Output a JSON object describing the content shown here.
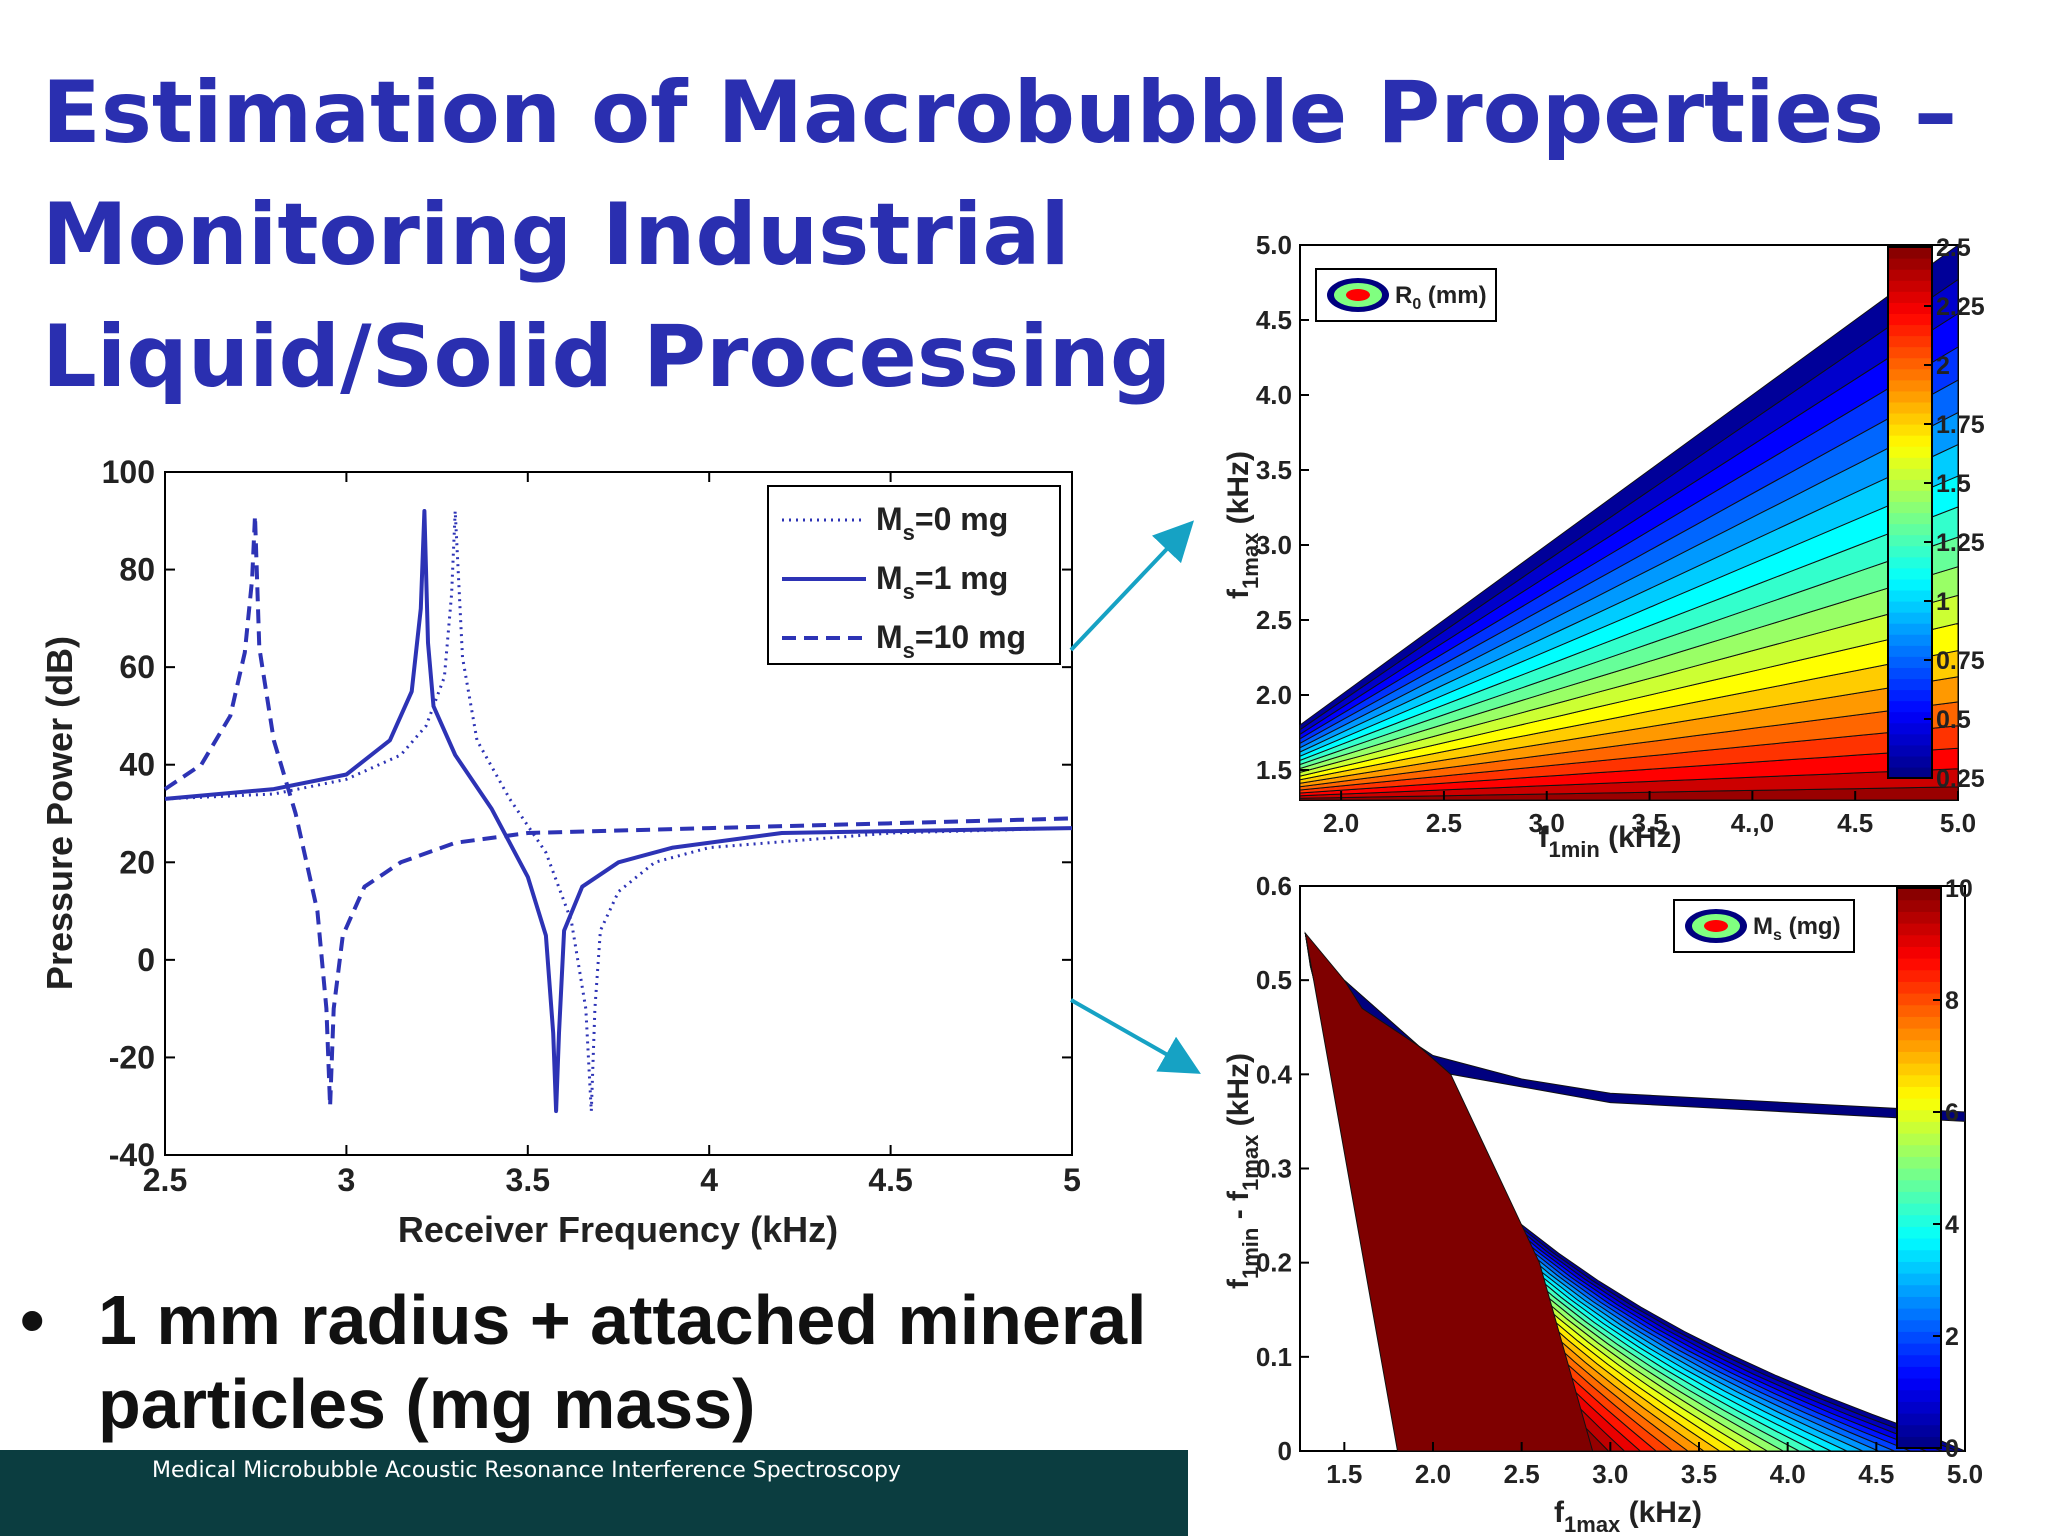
{
  "slide": {
    "title_lines": [
      "Estimation of Macrobubble Properties –",
      "Monitoring Industrial",
      "Liquid/Solid Processing"
    ],
    "bullet_symbol": "•",
    "bullet_text": "1 mm radius + attached mineral particles (mg mass)",
    "footer_text": "Medical Microbubble Acoustic Resonance Interference Spectroscopy"
  },
  "chart_data": [
    {
      "type": "line",
      "xlabel": "Receiver Frequency (kHz)",
      "ylabel": "Pressure Power (dB)",
      "xlim": [
        2.5,
        5
      ],
      "ylim": [
        -40,
        100
      ],
      "xticks": [
        "2.5",
        "3",
        "3.5",
        "4",
        "4.5",
        "5"
      ],
      "yticks": [
        "-40",
        "-20",
        "0",
        "20",
        "40",
        "60",
        "80",
        "100"
      ],
      "legend_position": "top-right",
      "series": [
        {
          "name": "Ms=0 mg",
          "label_main": "M",
          "label_sub": "s",
          "label_rest": "=0 mg",
          "style": "dotted",
          "x": [
            2.5,
            2.8,
            3.0,
            3.15,
            3.22,
            3.27,
            3.29,
            3.3,
            3.32,
            3.36,
            3.45,
            3.55,
            3.62,
            3.66,
            3.675,
            3.685,
            3.7,
            3.75,
            3.85,
            4.0,
            4.5,
            5.0
          ],
          "y": [
            33,
            34,
            37,
            42,
            48,
            58,
            75,
            92,
            62,
            45,
            33,
            22,
            8,
            -10,
            -31,
            -10,
            6,
            14,
            20,
            23,
            26,
            27
          ]
        },
        {
          "name": "Ms=1 mg",
          "label_main": "M",
          "label_sub": "s",
          "label_rest": "=1 mg",
          "style": "solid",
          "x": [
            2.5,
            2.8,
            3.0,
            3.12,
            3.18,
            3.205,
            3.215,
            3.225,
            3.24,
            3.3,
            3.4,
            3.5,
            3.55,
            3.57,
            3.578,
            3.586,
            3.6,
            3.65,
            3.75,
            3.9,
            4.2,
            5.0
          ],
          "y": [
            33,
            35,
            38,
            45,
            55,
            72,
            92,
            65,
            52,
            42,
            31,
            17,
            5,
            -15,
            -31,
            -15,
            6,
            15,
            20,
            23,
            26,
            27
          ]
        },
        {
          "name": "Ms=10 mg",
          "label_main": "M",
          "label_sub": "s",
          "label_rest": "=10 mg",
          "style": "dashed",
          "x": [
            2.5,
            2.6,
            2.68,
            2.72,
            2.74,
            2.748,
            2.76,
            2.8,
            2.86,
            2.92,
            2.945,
            2.955,
            2.965,
            2.99,
            3.05,
            3.15,
            3.3,
            3.5,
            4.0,
            4.5,
            5.0
          ],
          "y": [
            35,
            40,
            50,
            63,
            78,
            91,
            64,
            45,
            30,
            10,
            -10,
            -30,
            -10,
            5,
            15,
            20,
            24,
            26,
            27,
            28,
            29
          ]
        }
      ]
    },
    {
      "type": "contour",
      "legend_label_main": "R",
      "legend_label_sub": "0",
      "legend_label_rest": " (mm)",
      "xlabel_main": "f",
      "xlabel_sub": "1min",
      "xlabel_rest": " (kHz)",
      "ylabel_main": "f",
      "ylabel_sub": "1max",
      "ylabel_rest": " (kHz)",
      "xlim": [
        1.8,
        5.0
      ],
      "ylim": [
        1.3,
        5.0
      ],
      "xticks": [
        "2.0",
        "2.5",
        "3.0",
        "3.5",
        "4.,0",
        "4.5",
        "5.0"
      ],
      "yticks": [
        "1.5",
        "2.0",
        "2.5",
        "3.0",
        "3.5",
        "4.0",
        "4.5",
        "5.0"
      ],
      "colorbar": {
        "range": [
          0.25,
          2.5
        ],
        "ticks": [
          "0.25",
          "0.5",
          "0.75",
          "1",
          "1.25",
          "1.5",
          "1.75",
          "2",
          "2.25",
          "2.5"
        ]
      },
      "levels": 20
    },
    {
      "type": "contour",
      "legend_label_main": "M",
      "legend_label_sub": "s",
      "legend_label_rest": " (mg)",
      "xlabel_main": "f",
      "xlabel_sub": "1max",
      "xlabel_rest": " (kHz)",
      "ylabel_main": "f",
      "ylabel_sub": "1min",
      "ylabel_rest": " - f",
      "ylabel_sub2": "1max",
      "ylabel_rest2": " (kHz)",
      "xlim": [
        1.25,
        5.0
      ],
      "ylim": [
        0,
        0.6
      ],
      "xticks": [
        "1.5",
        "2.0",
        "2.5",
        "3.0",
        "3.5",
        "4.0",
        "4.5",
        "5.0"
      ],
      "yticks": [
        "0",
        "0.1",
        "0.2",
        "0.3",
        "0.4",
        "0.5",
        "0.6"
      ],
      "colorbar": {
        "range": [
          0,
          10
        ],
        "ticks": [
          "0",
          "2",
          "4",
          "6",
          "8",
          "10"
        ]
      },
      "levels": 24
    }
  ]
}
